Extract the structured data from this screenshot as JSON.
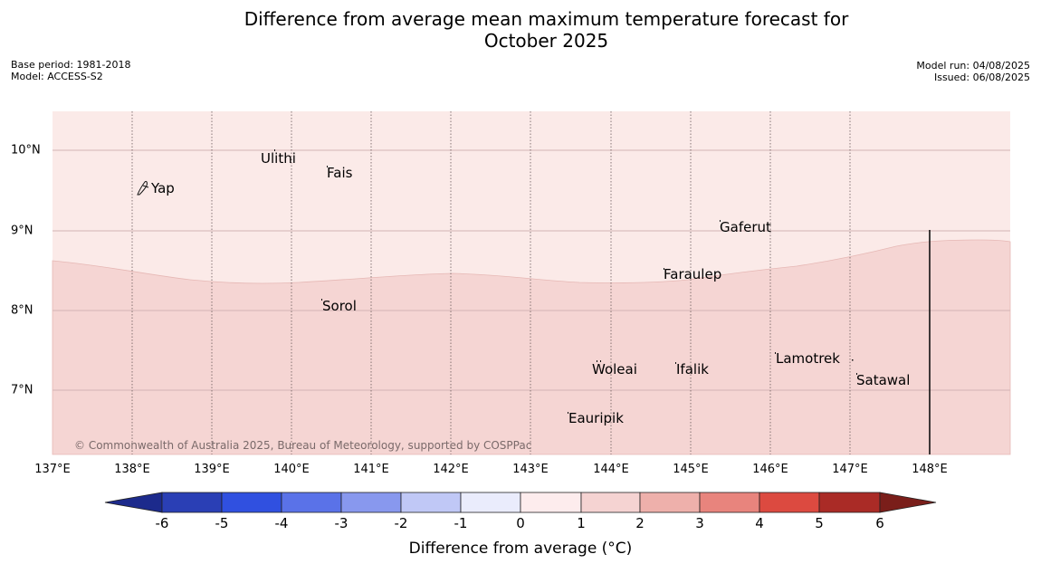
{
  "header": {
    "title_line1": "Difference from average mean maximum temperature forecast for",
    "title_line2": "October 2025",
    "base_period": "Base period: 1981-2018",
    "model": "Model: ACCESS-S2",
    "model_run": "Model run: 04/08/2025",
    "issued": "Issued: 06/08/2025"
  },
  "map": {
    "lon_labels": [
      "137°E",
      "138°E",
      "139°E",
      "140°E",
      "141°E",
      "142°E",
      "143°E",
      "144°E",
      "145°E",
      "146°E",
      "147°E",
      "148°E"
    ],
    "lat_labels": [
      "10°N",
      "9°N",
      "8°N",
      "7°N"
    ],
    "places": [
      "Yap",
      "Ulithi",
      "Fais",
      "Gaferut",
      "Faraulep",
      "Sorol",
      "Lamotrek",
      "Woleai",
      "Ifalik",
      "Satawal",
      "Eauripik"
    ],
    "credit": "© Commonwealth of Australia 2025, Bureau of Meteorology, supported by COSPPac",
    "colors": {
      "zone_0_1": "#fbeae8",
      "zone_1_2": "#f5d5d3",
      "grid": "#d9bcbc"
    }
  },
  "colorbar": {
    "ticks": [
      "-6",
      "-5",
      "-4",
      "-3",
      "-2",
      "-1",
      "0",
      "1",
      "2",
      "3",
      "4",
      "5",
      "6"
    ],
    "title": "Difference from average (°C)",
    "colors": [
      "#1c2a8c",
      "#2a3fb5",
      "#3050e0",
      "#5a72e8",
      "#8898ee",
      "#c0c8f6",
      "#eaecfc",
      "#fdeced",
      "#f5d3d2",
      "#eeb0ab",
      "#e8847d",
      "#dc4a40",
      "#aa2b26",
      "#7a1e1a"
    ]
  }
}
